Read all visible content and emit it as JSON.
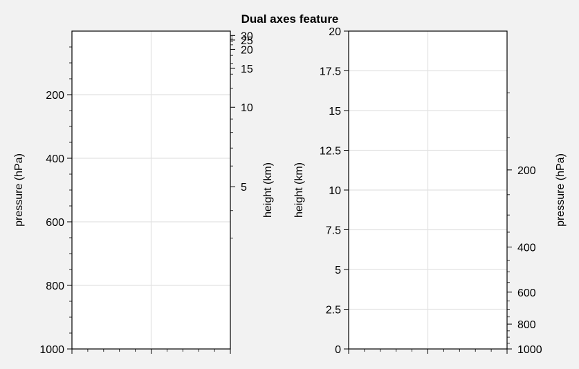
{
  "chart_data": {
    "type": "line",
    "title": "Dual axes feature",
    "grid": true,
    "panels": [
      {
        "name": "left",
        "series": [],
        "x": {
          "ticks_major": [
            0,
            0.5,
            1
          ],
          "ticks_minor": [
            0.1,
            0.2,
            0.3,
            0.4,
            0.6,
            0.7,
            0.8,
            0.9
          ],
          "labels_shown": false,
          "lim": [
            0,
            1
          ]
        },
        "y_left": {
          "label": "pressure (hPa)",
          "lim": [
            0,
            1000
          ],
          "inverted": true,
          "ticks": [
            200,
            400,
            600,
            800,
            1000
          ],
          "tick_labels": [
            "200",
            "400",
            "600",
            "800",
            "1000"
          ],
          "minor_ticks": [
            50,
            100,
            150,
            250,
            300,
            350,
            450,
            500,
            550,
            650,
            700,
            750,
            850,
            900,
            950
          ]
        },
        "y_right": {
          "label": "height (km)",
          "scale": "log-pressure",
          "ticks": [
            5,
            10,
            15,
            20,
            25,
            30
          ],
          "tick_labels": [
            "5",
            "10",
            "15",
            "20",
            "25",
            "30"
          ],
          "minor_ticks": [
            3,
            4,
            6,
            7,
            8,
            9,
            12,
            14,
            16,
            18,
            22,
            24,
            26,
            28
          ]
        }
      },
      {
        "name": "right",
        "series": [],
        "x": {
          "ticks_major": [
            0,
            0.5,
            1
          ],
          "ticks_minor": [
            0.1,
            0.2,
            0.3,
            0.4,
            0.6,
            0.7,
            0.8,
            0.9
          ],
          "labels_shown": false,
          "lim": [
            0,
            1
          ]
        },
        "y_left": {
          "label": "height (km)",
          "lim": [
            0,
            20
          ],
          "ticks": [
            0,
            2.5,
            5,
            7.5,
            10,
            12.5,
            15,
            17.5,
            20
          ],
          "tick_labels": [
            "0",
            "2.5",
            "5",
            "7.5",
            "10",
            "12.5",
            "15",
            "17.5",
            "20"
          ],
          "minor_ticks": []
        },
        "y_right": {
          "label": "pressure (hPa)",
          "scale": "log-pressure",
          "ticks": [
            200,
            400,
            600,
            800,
            1000
          ],
          "tick_labels": [
            "200",
            "400",
            "600",
            "800",
            "1000"
          ],
          "minor_ticks": [
            100,
            150,
            250,
            300,
            350,
            450,
            500,
            550,
            650,
            700,
            750,
            850,
            900,
            950
          ]
        }
      }
    ]
  }
}
